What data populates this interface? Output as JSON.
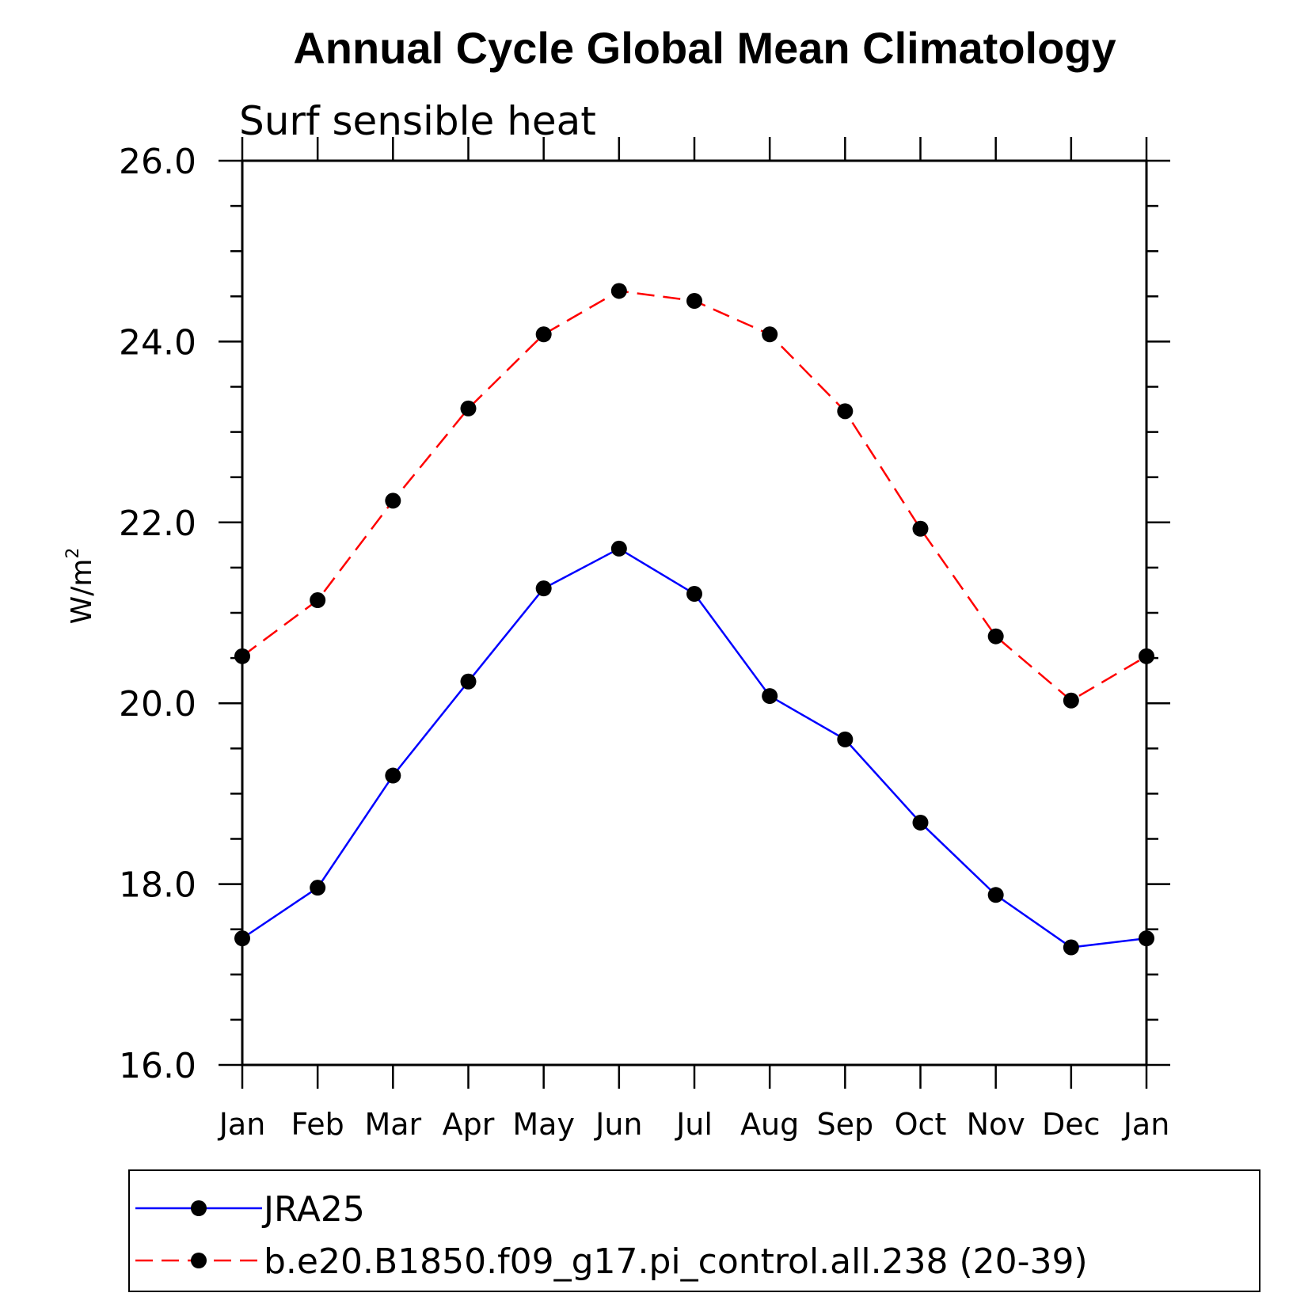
{
  "chart_data": {
    "type": "line",
    "title": "Annual Cycle Global Mean Climatology",
    "subtitle": "Surf sensible heat",
    "ylabel": "W/m",
    "ylabel_sup": "2",
    "xlabel": "",
    "categories": [
      "Jan",
      "Feb",
      "Mar",
      "Apr",
      "May",
      "Jun",
      "Jul",
      "Aug",
      "Sep",
      "Oct",
      "Nov",
      "Dec",
      "Jan"
    ],
    "ylim": [
      16.0,
      26.0
    ],
    "yticks": [
      "16.0",
      "18.0",
      "20.0",
      "22.0",
      "24.0",
      "26.0"
    ],
    "ytick_values": [
      16,
      18,
      20,
      22,
      24,
      26
    ],
    "minor_step": 0.5,
    "grid": false,
    "legend_position": "bottom",
    "series": [
      {
        "name": "JRA25",
        "color": "#0000ff",
        "dash": "solid",
        "values": [
          17.4,
          17.96,
          19.2,
          20.24,
          21.27,
          21.71,
          21.21,
          20.08,
          19.6,
          18.68,
          17.88,
          17.3,
          17.4
        ]
      },
      {
        "name": "b.e20.B1850.f09_g17.pi_control.all.238 (20-39)",
        "color": "#ff0000",
        "dash": "dashed",
        "values": [
          20.52,
          21.14,
          22.24,
          23.26,
          24.08,
          24.56,
          24.45,
          24.08,
          23.23,
          21.93,
          20.74,
          20.03,
          20.52
        ]
      }
    ]
  }
}
